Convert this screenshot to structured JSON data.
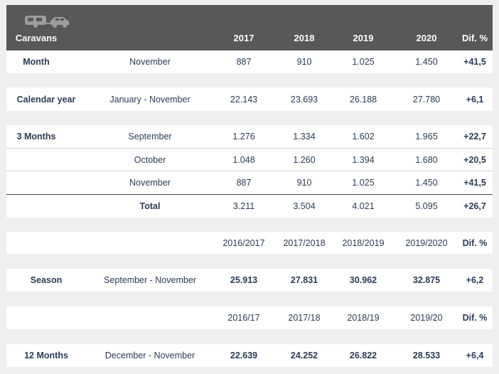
{
  "header": {
    "title": "Caravans",
    "icon": "caravan-car-icon",
    "columns": [
      "2017",
      "2018",
      "2019",
      "2020",
      "Dif. %"
    ]
  },
  "month_row": {
    "label": "Month",
    "period": "November",
    "values": [
      "887",
      "910",
      "1.025",
      "1.450"
    ],
    "diff": "+41,5"
  },
  "calendar_row": {
    "label": "Calendar year",
    "period": "January - November",
    "values": [
      "22.143",
      "23.693",
      "26.188",
      "27.780"
    ],
    "diff": "+6,1"
  },
  "three_months": {
    "label": "3 Months",
    "rows": [
      {
        "period": "September",
        "values": [
          "1.276",
          "1.334",
          "1.602",
          "1.965"
        ],
        "diff": "+22,7"
      },
      {
        "period": "October",
        "values": [
          "1.048",
          "1.260",
          "1.394",
          "1.680"
        ],
        "diff": "+20,5"
      },
      {
        "period": "November",
        "values": [
          "887",
          "910",
          "1.025",
          "1.450"
        ],
        "diff": "+41,5"
      }
    ],
    "total": {
      "label": "Total",
      "values": [
        "3.211",
        "3.504",
        "4.021",
        "5.095"
      ],
      "diff": "+26,7"
    }
  },
  "season_header": {
    "columns": [
      "2016/2017",
      "2017/2018",
      "2018/2019",
      "2019/2020",
      "Dif. %"
    ]
  },
  "season_row": {
    "label": "Season",
    "period": "September - November",
    "values": [
      "25.913",
      "27.831",
      "30.962",
      "32.875"
    ],
    "diff": "+6,2"
  },
  "twelve_header": {
    "columns": [
      "2016/17",
      "2017/18",
      "2018/19",
      "2019/20",
      "Dif. %"
    ]
  },
  "twelve_row": {
    "label": "12 Months",
    "period": "December - November",
    "values": [
      "22.639",
      "24.252",
      "26.822",
      "28.533"
    ],
    "diff": "+6,4"
  }
}
